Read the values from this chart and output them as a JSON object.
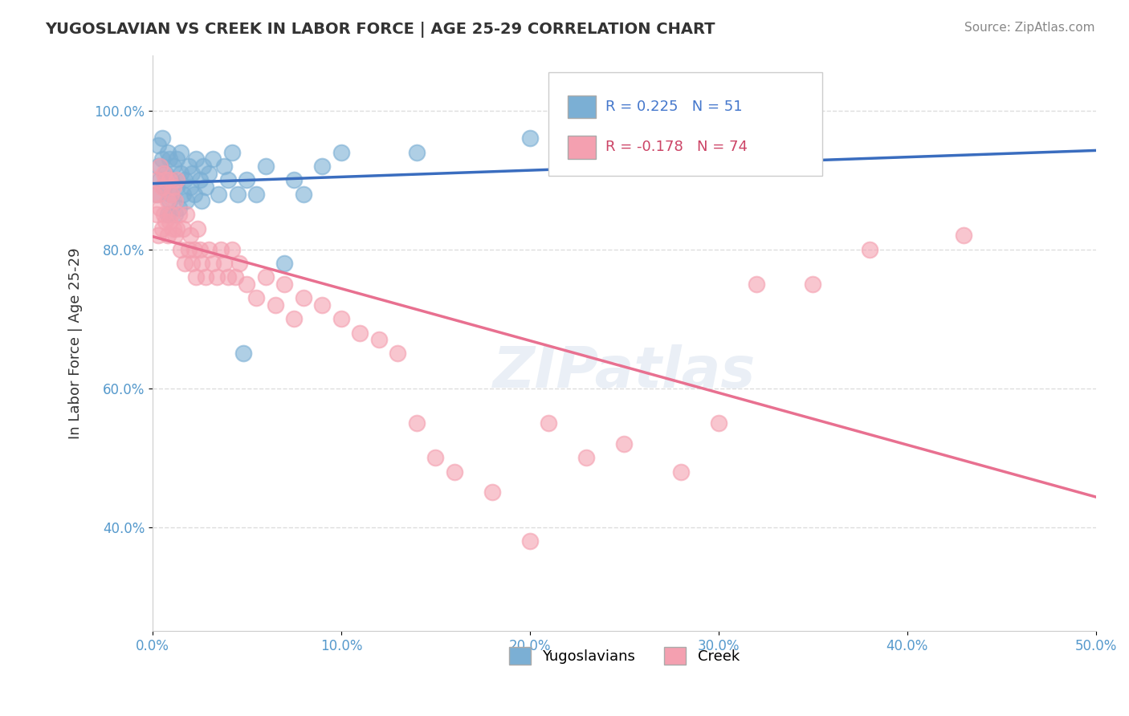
{
  "title": "YUGOSLAVIAN VS CREEK IN LABOR FORCE | AGE 25-29 CORRELATION CHART",
  "source_text": "Source: ZipAtlas.com",
  "ylabel": "In Labor Force | Age 25-29",
  "xlim": [
    0.0,
    0.5
  ],
  "ylim": [
    0.25,
    1.08
  ],
  "xticks": [
    0.0,
    0.1,
    0.2,
    0.3,
    0.4,
    0.5
  ],
  "yticks": [
    0.4,
    0.6,
    0.8,
    1.0
  ],
  "ytick_labels": [
    "40.0%",
    "60.0%",
    "80.0%",
    "100.0%"
  ],
  "xtick_labels": [
    "0.0%",
    "10.0%",
    "20.0%",
    "30.0%",
    "40.0%",
    "50.0%"
  ],
  "legend_R_blue": "0.225",
  "legend_N_blue": "51",
  "legend_R_pink": "-0.178",
  "legend_N_pink": "74",
  "blue_color": "#7bafd4",
  "pink_color": "#f4a0b0",
  "blue_line_color": "#3a6dbf",
  "pink_line_color": "#e87090",
  "blue_text_color": "#4477cc",
  "pink_text_color": "#cc4466",
  "watermark": "ZIPatlas",
  "blue_scatter_x": [
    0.002,
    0.003,
    0.003,
    0.004,
    0.005,
    0.005,
    0.006,
    0.007,
    0.008,
    0.008,
    0.009,
    0.009,
    0.01,
    0.01,
    0.011,
    0.012,
    0.013,
    0.013,
    0.014,
    0.015,
    0.015,
    0.016,
    0.017,
    0.018,
    0.019,
    0.02,
    0.021,
    0.022,
    0.023,
    0.025,
    0.026,
    0.027,
    0.028,
    0.03,
    0.032,
    0.035,
    0.038,
    0.04,
    0.042,
    0.045,
    0.048,
    0.05,
    0.055,
    0.06,
    0.07,
    0.075,
    0.08,
    0.09,
    0.1,
    0.14,
    0.2
  ],
  "blue_scatter_y": [
    0.88,
    0.92,
    0.95,
    0.9,
    0.93,
    0.96,
    0.89,
    0.91,
    0.85,
    0.94,
    0.87,
    0.93,
    0.88,
    0.9,
    0.92,
    0.85,
    0.89,
    0.93,
    0.86,
    0.91,
    0.94,
    0.88,
    0.9,
    0.87,
    0.92,
    0.89,
    0.91,
    0.88,
    0.93,
    0.9,
    0.87,
    0.92,
    0.89,
    0.91,
    0.93,
    0.88,
    0.92,
    0.9,
    0.94,
    0.88,
    0.65,
    0.9,
    0.88,
    0.92,
    0.78,
    0.9,
    0.88,
    0.92,
    0.94,
    0.94,
    0.96
  ],
  "pink_scatter_x": [
    0.001,
    0.002,
    0.002,
    0.003,
    0.003,
    0.004,
    0.004,
    0.005,
    0.005,
    0.006,
    0.006,
    0.007,
    0.007,
    0.008,
    0.008,
    0.009,
    0.009,
    0.01,
    0.01,
    0.011,
    0.011,
    0.012,
    0.012,
    0.013,
    0.013,
    0.014,
    0.015,
    0.016,
    0.017,
    0.018,
    0.019,
    0.02,
    0.021,
    0.022,
    0.023,
    0.024,
    0.025,
    0.026,
    0.028,
    0.03,
    0.032,
    0.034,
    0.036,
    0.038,
    0.04,
    0.042,
    0.044,
    0.046,
    0.05,
    0.055,
    0.06,
    0.065,
    0.07,
    0.075,
    0.08,
    0.09,
    0.1,
    0.11,
    0.12,
    0.13,
    0.14,
    0.15,
    0.16,
    0.18,
    0.2,
    0.21,
    0.23,
    0.25,
    0.28,
    0.3,
    0.32,
    0.35,
    0.38,
    0.43
  ],
  "pink_scatter_y": [
    0.88,
    0.85,
    0.9,
    0.82,
    0.88,
    0.86,
    0.92,
    0.83,
    0.89,
    0.85,
    0.91,
    0.84,
    0.9,
    0.82,
    0.87,
    0.84,
    0.9,
    0.85,
    0.88,
    0.83,
    0.89,
    0.82,
    0.87,
    0.83,
    0.9,
    0.85,
    0.8,
    0.83,
    0.78,
    0.85,
    0.8,
    0.82,
    0.78,
    0.8,
    0.76,
    0.83,
    0.8,
    0.78,
    0.76,
    0.8,
    0.78,
    0.76,
    0.8,
    0.78,
    0.76,
    0.8,
    0.76,
    0.78,
    0.75,
    0.73,
    0.76,
    0.72,
    0.75,
    0.7,
    0.73,
    0.72,
    0.7,
    0.68,
    0.67,
    0.65,
    0.55,
    0.5,
    0.48,
    0.45,
    0.38,
    0.55,
    0.5,
    0.52,
    0.48,
    0.55,
    0.75,
    0.75,
    0.8,
    0.82
  ]
}
